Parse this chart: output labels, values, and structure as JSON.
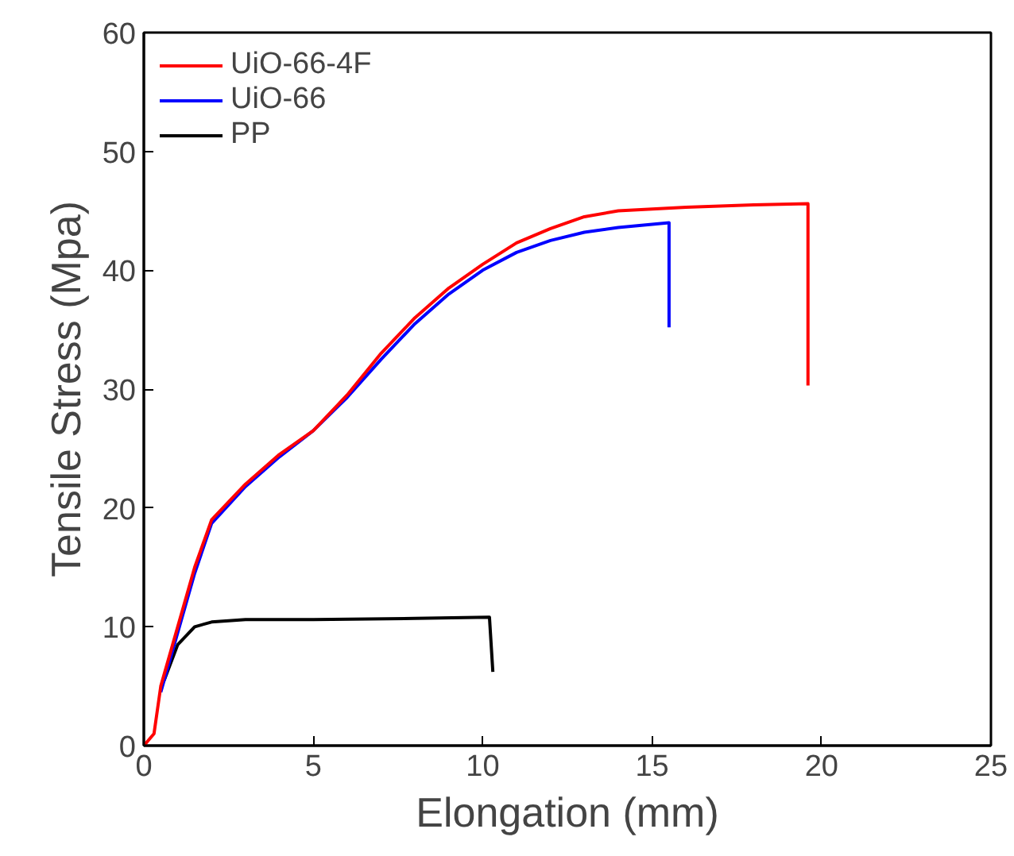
{
  "chart_data": {
    "type": "line",
    "xlabel": "Elongation (mm)",
    "ylabel": "Tensile Stress (Mpa)",
    "xlim": [
      0,
      25
    ],
    "ylim": [
      0,
      60
    ],
    "xticks": [
      0,
      5,
      10,
      15,
      20,
      25
    ],
    "yticks": [
      0,
      10,
      20,
      30,
      40,
      50,
      60
    ],
    "grid": false,
    "legend": "top left",
    "line_style": "solid",
    "marker": "none",
    "series": [
      {
        "name": "UiO-66-4F",
        "color": "#ff0000",
        "x": [
          0,
          0.3,
          0.5,
          1,
          1.5,
          2,
          3,
          4,
          4.5,
          5,
          6,
          7,
          8,
          9,
          10,
          11,
          12,
          13,
          14,
          16,
          18,
          19.6,
          19.6
        ],
        "values": [
          0,
          1,
          5,
          10,
          15,
          19,
          22,
          24.5,
          25.5,
          26.5,
          29.5,
          33,
          36,
          38.5,
          40.5,
          42.3,
          43.5,
          44.5,
          45,
          45.3,
          45.5,
          45.6,
          30.3
        ]
      },
      {
        "name": "UiO-66",
        "color": "#0000ff",
        "x": [
          0.5,
          1,
          1.5,
          2,
          3,
          4,
          5,
          6,
          7,
          8,
          9,
          10,
          11,
          12,
          13,
          14,
          15.5,
          15.5
        ],
        "values": [
          4.5,
          9.5,
          14.5,
          18.7,
          21.8,
          24.3,
          26.5,
          29.3,
          32.5,
          35.5,
          38,
          40,
          41.5,
          42.5,
          43.2,
          43.6,
          44,
          35.2
        ]
      },
      {
        "name": "PP",
        "color": "#000000",
        "x": [
          0.6,
          1,
          1.5,
          2,
          3,
          5,
          8,
          10.2,
          10.3
        ],
        "values": [
          5.5,
          8.5,
          10,
          10.4,
          10.6,
          10.6,
          10.7,
          10.8,
          6.2
        ]
      }
    ]
  }
}
